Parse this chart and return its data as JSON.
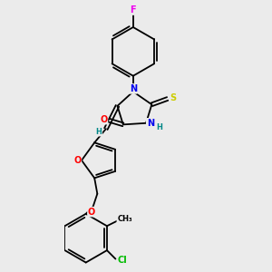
{
  "background_color": "#ebebeb",
  "atom_colors": {
    "F": "#ee00ee",
    "O": "#ff0000",
    "N": "#0000ee",
    "S": "#cccc00",
    "Cl": "#00bb00",
    "C": "#000000",
    "H": "#008888"
  },
  "bond_color": "#000000",
  "fig_width": 3.0,
  "fig_height": 3.0,
  "dpi": 100
}
